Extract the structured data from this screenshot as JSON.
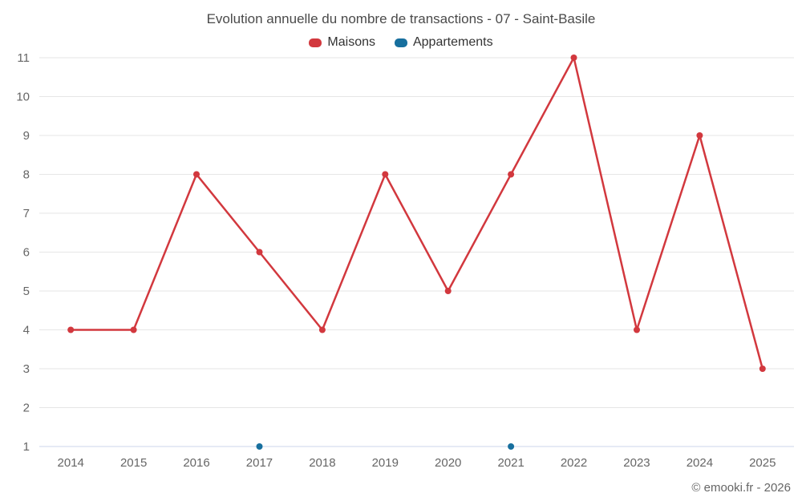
{
  "chart": {
    "title": "Evolution annuelle du nombre de transactions - 07 - Saint-Basile",
    "credits": "© emooki.fr - 2026"
  },
  "chart_data": {
    "type": "line",
    "title": "Evolution annuelle du nombre de transactions - 07 - Saint-Basile",
    "categories": [
      "2014",
      "2015",
      "2016",
      "2017",
      "2018",
      "2019",
      "2020",
      "2021",
      "2022",
      "2023",
      "2024",
      "2025"
    ],
    "series": [
      {
        "name": "Maisons",
        "color": "#d2383e",
        "values": [
          4,
          4,
          8,
          6,
          4,
          8,
          5,
          8,
          11,
          4,
          9,
          3
        ]
      },
      {
        "name": "Appartements",
        "color": "#176f9e",
        "values": [
          null,
          null,
          null,
          1,
          null,
          null,
          null,
          1,
          null,
          null,
          null,
          null
        ]
      }
    ],
    "xlabel": "",
    "ylabel": "",
    "ylim": [
      1,
      11
    ],
    "yticks": [
      1,
      2,
      3,
      4,
      5,
      6,
      7,
      8,
      9,
      10,
      11
    ],
    "grid": "horizontal",
    "gridline_color": "#e6e6e6",
    "axis_line_color": "#ccd6eb",
    "legend_position": "top"
  }
}
